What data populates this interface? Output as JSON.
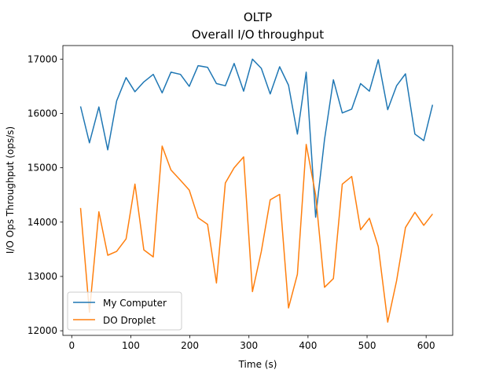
{
  "chart_data": {
    "type": "line",
    "title": "OLTP",
    "subtitle": "Overall I/O throughput",
    "xlabel": "Time (s)",
    "ylabel": "I/O Ops Throughput (ops/s)",
    "xlim": [
      -15,
      645
    ],
    "ylim": [
      11915,
      17250
    ],
    "xticks": [
      0,
      100,
      200,
      300,
      400,
      500,
      600
    ],
    "yticks": [
      12000,
      13000,
      14000,
      15000,
      16000,
      17000
    ],
    "grid": false,
    "legend": "lower-left",
    "series": [
      {
        "name": "My Computer",
        "color": "#1f77b4",
        "x": [
          15,
          30,
          46,
          61,
          76,
          92,
          107,
          122,
          138,
          153,
          168,
          184,
          199,
          214,
          230,
          245,
          260,
          275,
          291,
          306,
          321,
          336,
          352,
          367,
          382,
          397,
          413,
          428,
          443,
          458,
          474,
          489,
          504,
          519,
          535,
          550,
          565,
          581,
          596,
          611
        ],
        "y": [
          16130,
          15460,
          16120,
          15330,
          16230,
          16660,
          16400,
          16580,
          16720,
          16380,
          16760,
          16720,
          16500,
          16880,
          16850,
          16550,
          16510,
          16920,
          16410,
          17000,
          16830,
          16360,
          16860,
          16520,
          15620,
          16760,
          14090,
          15520,
          16620,
          16010,
          16080,
          16550,
          16410,
          16990,
          16070,
          16510,
          16730,
          15620,
          15500,
          16160
        ]
      },
      {
        "name": "DO Droplet",
        "color": "#ff7f0e",
        "x": [
          15,
          30,
          46,
          61,
          76,
          92,
          107,
          122,
          138,
          153,
          168,
          184,
          199,
          214,
          230,
          245,
          260,
          275,
          291,
          306,
          321,
          336,
          352,
          367,
          382,
          397,
          413,
          428,
          443,
          458,
          474,
          489,
          504,
          519,
          535,
          550,
          565,
          581,
          596,
          611
        ],
        "y": [
          14260,
          12340,
          14190,
          13390,
          13460,
          13690,
          14700,
          13490,
          13360,
          15400,
          14960,
          14770,
          14590,
          14080,
          13960,
          12880,
          14720,
          15000,
          15200,
          12720,
          13460,
          14410,
          14510,
          12420,
          13040,
          15430,
          14500,
          12800,
          12960,
          14700,
          14840,
          13860,
          14070,
          13550,
          12160,
          12920,
          13900,
          14180,
          13940,
          14150
        ]
      }
    ]
  }
}
